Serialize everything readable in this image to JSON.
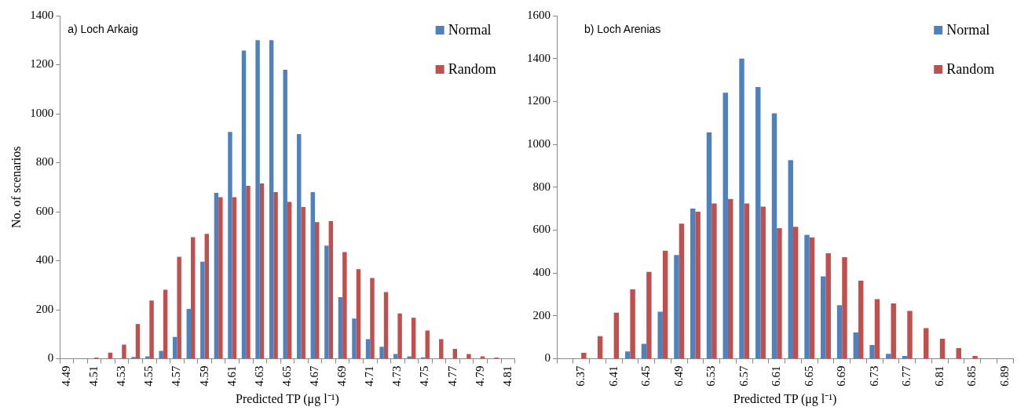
{
  "chart_data": [
    {
      "type": "bar",
      "title": "a) Loch Arkaig",
      "xlabel": "Predicted TP (μg l⁻¹)",
      "ylabel": "No. of scenarios",
      "categories": [
        "4.49",
        null,
        "4.51",
        null,
        "4.53",
        null,
        "4.55",
        null,
        "4.57",
        null,
        "4.59",
        null,
        "4.61",
        null,
        "4.63",
        null,
        "4.65",
        null,
        "4.67",
        null,
        "4.69",
        null,
        "4.71",
        null,
        "4.73",
        null,
        "4.75",
        null,
        "4.77",
        null,
        "4.79",
        null,
        "4.81"
      ],
      "series": [
        {
          "name": "Normal",
          "color": "#4f81bd",
          "values": [
            0,
            0,
            0,
            0,
            0,
            7,
            10,
            32,
            89,
            203,
            396,
            677,
            926,
            1258,
            1300,
            1300,
            1179,
            917,
            680,
            462,
            251,
            164,
            80,
            49,
            19,
            10,
            6,
            0,
            0,
            0,
            0,
            0,
            0
          ]
        },
        {
          "name": "Random",
          "color": "#c0504d",
          "values": [
            0,
            0,
            5,
            25,
            58,
            142,
            238,
            282,
            416,
            496,
            510,
            659,
            659,
            706,
            715,
            680,
            640,
            619,
            558,
            562,
            435,
            366,
            330,
            272,
            185,
            167,
            115,
            80,
            40,
            19,
            10,
            5,
            0
          ]
        }
      ],
      "ylim": [
        0,
        1400
      ],
      "yticks": [
        0,
        200,
        400,
        600,
        800,
        1000,
        1200,
        1400
      ],
      "grid": false,
      "legend": "top right"
    },
    {
      "type": "bar",
      "title": "b) Loch Arenias",
      "xlabel": "Predicted TP (μg l⁻¹)",
      "categories": [
        null,
        "6.37",
        null,
        "6.41",
        null,
        "6.45",
        null,
        "6.49",
        null,
        "6.53",
        null,
        "6.57",
        null,
        "6.61",
        null,
        "6.65",
        null,
        "6.69",
        null,
        "6.73",
        null,
        "6.77",
        null,
        "6.81",
        null,
        "6.85",
        null,
        "6.89"
      ],
      "series": [
        {
          "name": "Normal",
          "color": "#4f81bd",
          "values": [
            0,
            0,
            0,
            0,
            34,
            70,
            220,
            484,
            700,
            1056,
            1241,
            1400,
            1267,
            1145,
            926,
            578,
            384,
            250,
            123,
            64,
            23,
            13,
            0,
            0,
            0,
            0,
            0,
            0
          ]
        },
        {
          "name": "Random",
          "color": "#c0504d",
          "values": [
            0,
            28,
            105,
            215,
            324,
            405,
            504,
            630,
            686,
            724,
            745,
            724,
            710,
            609,
            615,
            566,
            492,
            474,
            364,
            278,
            258,
            223,
            143,
            93,
            50,
            13,
            0,
            0
          ]
        }
      ],
      "ylim": [
        0,
        1600
      ],
      "yticks": [
        0,
        200,
        400,
        600,
        800,
        1000,
        1200,
        1400,
        1600
      ],
      "grid": false,
      "legend": "top right"
    }
  ]
}
